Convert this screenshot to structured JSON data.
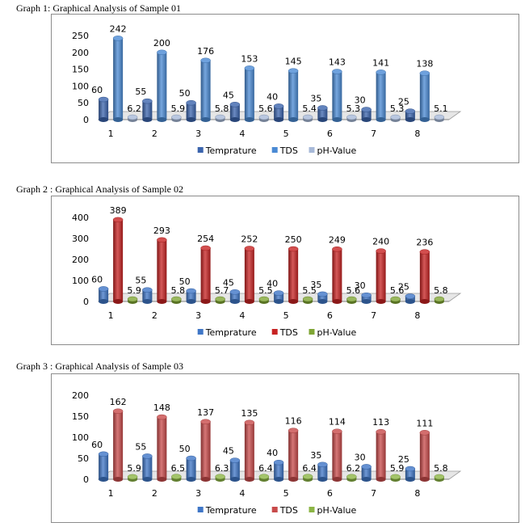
{
  "charts": [
    {
      "heading": "Graph 1: Graphical Analysis of Sample 01",
      "colors": {
        "Temprature": "#3b64ad",
        "TDS": "#4a8ad4",
        "pH-Value": "#a7b9d8"
      },
      "chart_data": {
        "type": "bar",
        "categories": [
          "1",
          "2",
          "3",
          "4",
          "5",
          "6",
          "7",
          "8"
        ],
        "ylim": [
          0,
          250
        ],
        "yticks": [
          0,
          50,
          100,
          150,
          200,
          250
        ],
        "legend": "bottom",
        "series": [
          {
            "name": "Temprature",
            "values": [
              60,
              55,
              50,
              45,
              40,
              35,
              30,
              25
            ]
          },
          {
            "name": "TDS",
            "values": [
              242,
              200,
              176,
              153,
              145,
              143,
              141,
              138
            ]
          },
          {
            "name": "pH-Value",
            "values": [
              6.2,
              5.9,
              5.8,
              5.6,
              5.4,
              5.3,
              5.3,
              5.1
            ]
          }
        ]
      }
    },
    {
      "heading": "Graph 2 : Graphical Analysis of Sample 02",
      "colors": {
        "Temprature": "#3f76c7",
        "TDS": "#c72222",
        "pH-Value": "#7fa534"
      },
      "chart_data": {
        "type": "bar",
        "categories": [
          "1",
          "2",
          "3",
          "4",
          "5",
          "6",
          "7",
          "8"
        ],
        "ylim": [
          0,
          400
        ],
        "yticks": [
          0,
          100,
          200,
          300,
          400
        ],
        "legend": "bottom",
        "series": [
          {
            "name": "Temprature",
            "values": [
              60,
              55,
              50,
              45,
              40,
              35,
              30,
              25
            ]
          },
          {
            "name": "TDS",
            "values": [
              389,
              293,
              254,
              252,
              250,
              249,
              240,
              236
            ]
          },
          {
            "name": "pH-Value",
            "values": [
              5.9,
              5.8,
              5.7,
              5.5,
              5.5,
              5.6,
              5.6,
              5.8
            ]
          }
        ]
      }
    },
    {
      "heading": "Graph 3 : Graphical Analysis of Sample 03",
      "colors": {
        "Temprature": "#3f76c7",
        "TDS": "#c84a4a",
        "pH-Value": "#8cb545"
      },
      "chart_data": {
        "type": "bar",
        "categories": [
          "1",
          "2",
          "3",
          "4",
          "5",
          "6",
          "7",
          "8"
        ],
        "ylim": [
          0,
          200
        ],
        "yticks": [
          0,
          50,
          100,
          150,
          200
        ],
        "legend": "bottom",
        "series": [
          {
            "name": "Temprature",
            "values": [
              60,
              55,
              50,
              45,
              40,
              35,
              30,
              25
            ]
          },
          {
            "name": "TDS",
            "values": [
              162,
              148,
              137,
              135,
              116,
              114,
              113,
              111
            ]
          },
          {
            "name": "pH-Value",
            "values": [
              5.9,
              6.5,
              6.3,
              6.4,
              6.4,
              6.2,
              5.9,
              5.8
            ]
          }
        ]
      }
    }
  ]
}
